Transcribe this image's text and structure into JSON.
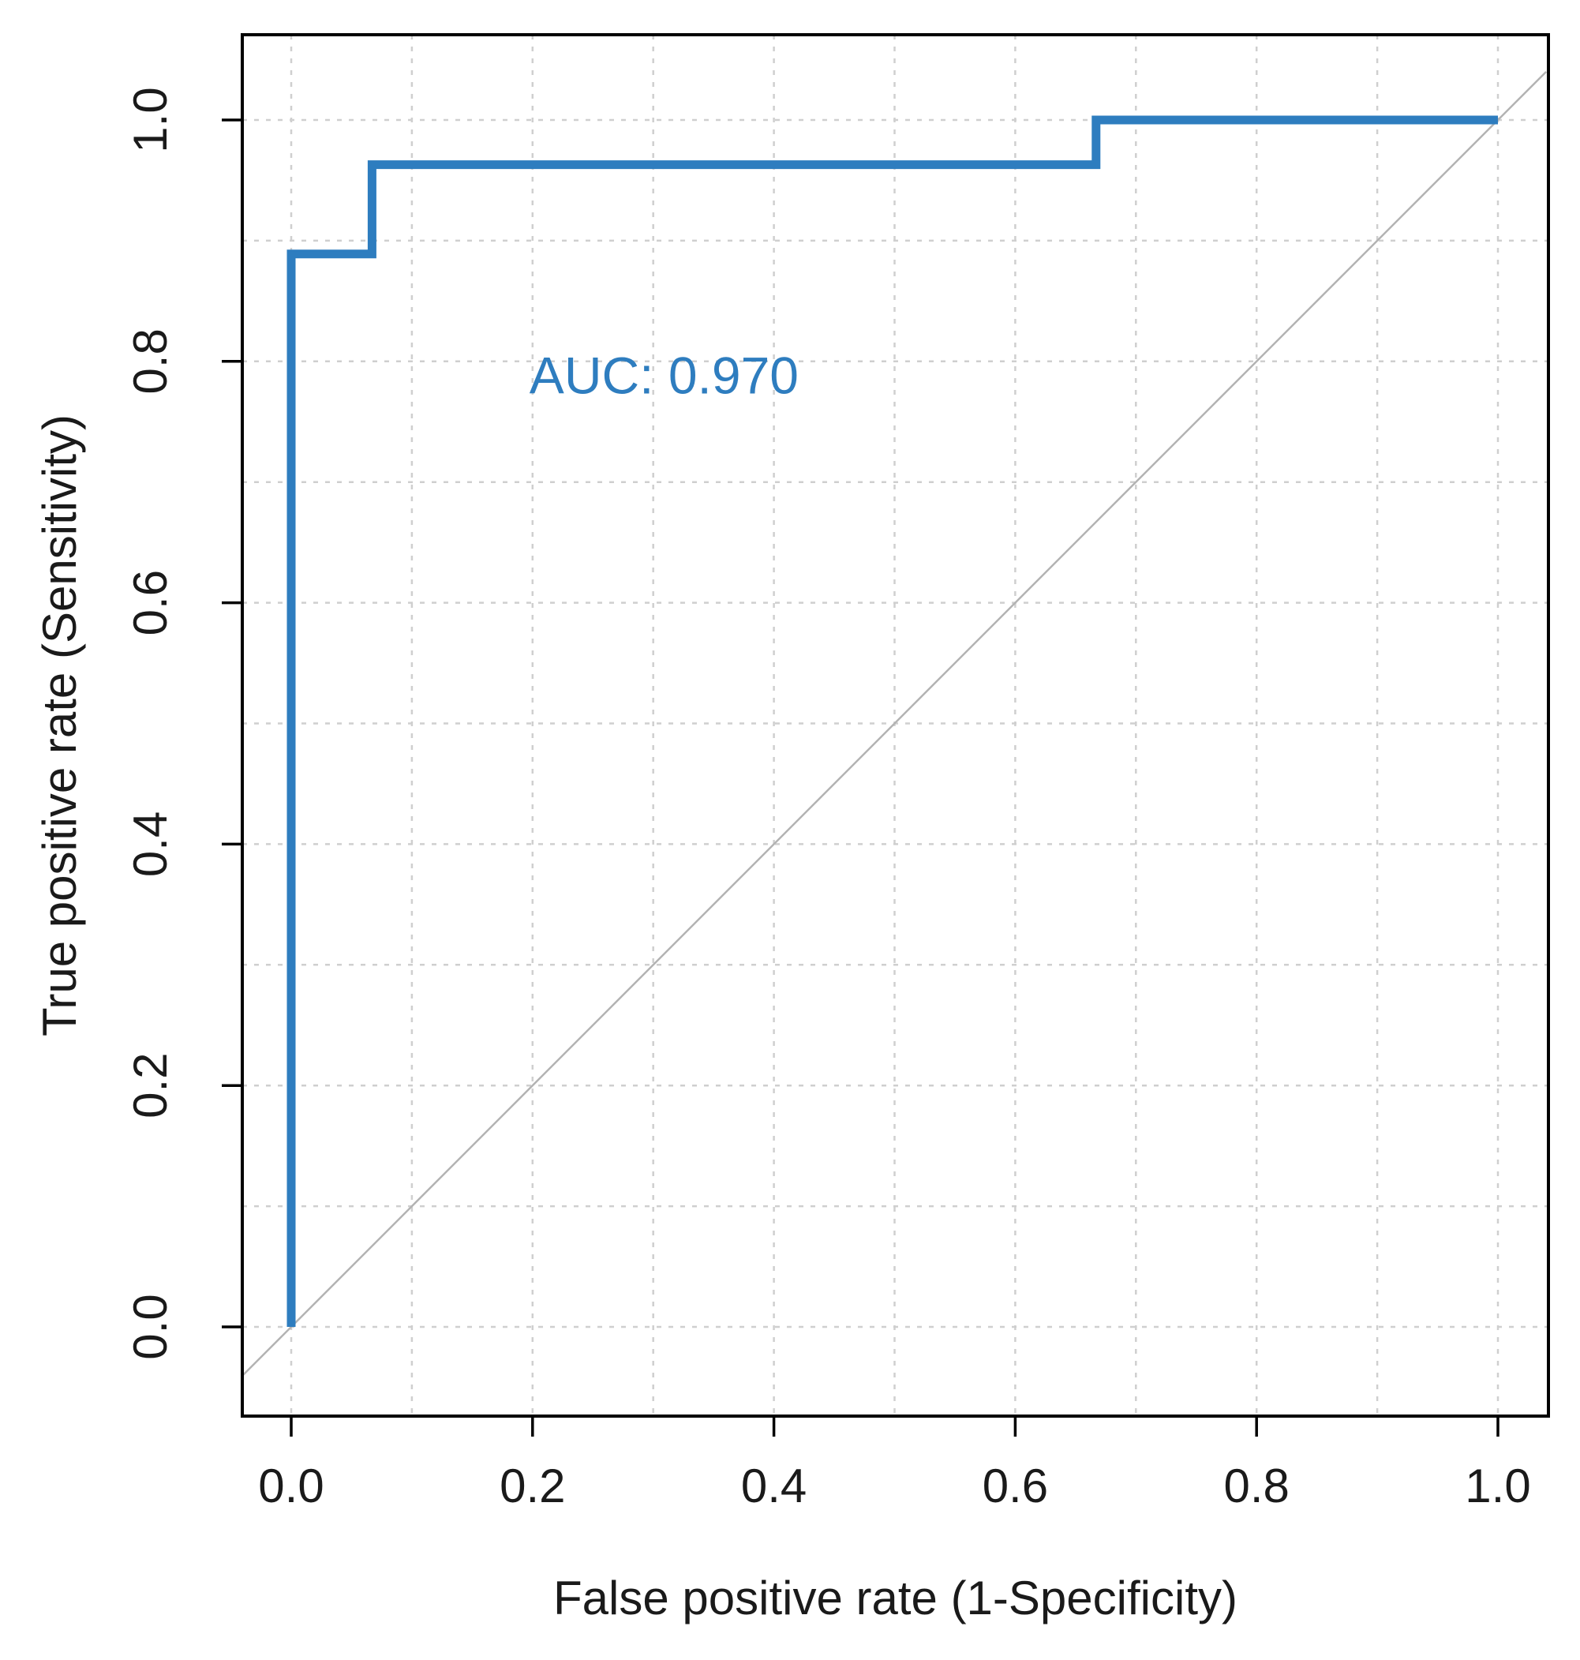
{
  "chart_data": {
    "type": "line",
    "title": "",
    "xlabel": "False positive rate (1-Specificity)",
    "ylabel": "True positive rate (Sensitivity)",
    "xlim": [
      -0.04,
      1.04
    ],
    "ylim": [
      -0.07,
      1.07
    ],
    "x_ticks": [
      0.0,
      0.2,
      0.4,
      0.6,
      0.8,
      1.0
    ],
    "x_tick_labels": [
      "0.0",
      "0.2",
      "0.4",
      "0.6",
      "0.8",
      "1.0"
    ],
    "y_ticks": [
      0.0,
      0.2,
      0.4,
      0.6,
      0.8,
      1.0
    ],
    "y_tick_labels": [
      "0.0",
      "0.2",
      "0.4",
      "0.6",
      "0.8",
      "1.0"
    ],
    "grid": true,
    "grid_step": 0.1,
    "series": [
      {
        "name": "ROC curve",
        "color": "#2e7dbf",
        "x": [
          0.0,
          0.0,
          0.067,
          0.067,
          0.667,
          0.667,
          1.0
        ],
        "y": [
          0.0,
          0.889,
          0.889,
          0.963,
          0.963,
          1.0,
          1.0
        ]
      },
      {
        "name": "reference",
        "color": "#b3b3b3",
        "x": [
          -0.04,
          1.04
        ],
        "y": [
          -0.04,
          1.04
        ]
      }
    ],
    "annotations": [
      {
        "text": "AUC: 0.970",
        "x": 0.2,
        "y": 0.78,
        "color": "#2e7dbf"
      }
    ]
  }
}
